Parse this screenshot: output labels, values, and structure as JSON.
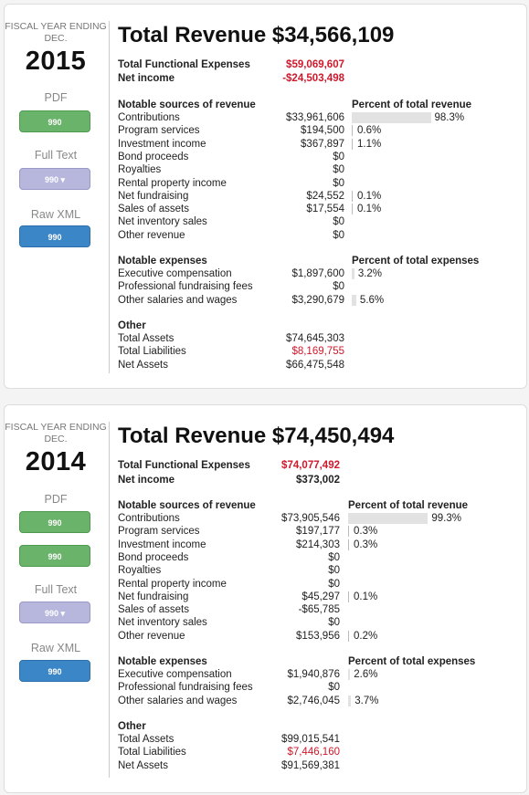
{
  "filings": [
    {
      "fy_label": "FISCAL YEAR ENDING DEC.",
      "year": "2015",
      "pdf_label": "PDF",
      "pdf_buttons": [
        "990"
      ],
      "fulltext_label": "Full Text",
      "fulltext_button": "990 ▾",
      "xml_label": "Raw XML",
      "xml_button": "990",
      "total_revenue": "Total Revenue $34,566,109",
      "functional_expenses_label": "Total Functional Expenses",
      "functional_expenses": "$59,069,607",
      "net_income_label": "Net income",
      "net_income": "-$24,503,498",
      "revenue_header": "Notable sources of revenue",
      "revenue_pct_header": "Percent of total revenue",
      "revenue": [
        {
          "label": "Contributions",
          "value": "$33,961,606",
          "pct": "98.3%",
          "pct_value": 98.3
        },
        {
          "label": "Program services",
          "value": "$194,500",
          "pct": "0.6%",
          "pct_value": 0.6
        },
        {
          "label": "Investment income",
          "value": "$367,897",
          "pct": "1.1%",
          "pct_value": 1.1
        },
        {
          "label": "Bond proceeds",
          "value": "$0",
          "pct": "",
          "pct_value": 0
        },
        {
          "label": "Royalties",
          "value": "$0",
          "pct": "",
          "pct_value": 0
        },
        {
          "label": "Rental property income",
          "value": "$0",
          "pct": "",
          "pct_value": 0
        },
        {
          "label": "Net fundraising",
          "value": "$24,552",
          "pct": "0.1%",
          "pct_value": 0.1
        },
        {
          "label": "Sales of assets",
          "value": "$17,554",
          "pct": "0.1%",
          "pct_value": 0.1
        },
        {
          "label": "Net inventory sales",
          "value": "$0",
          "pct": "",
          "pct_value": 0
        },
        {
          "label": "Other revenue",
          "value": "$0",
          "pct": "",
          "pct_value": 0
        }
      ],
      "expenses_header": "Notable expenses",
      "expenses_pct_header": "Percent of total expenses",
      "expenses": [
        {
          "label": "Executive compensation",
          "value": "$1,897,600",
          "pct": "3.2%",
          "pct_value": 3.2
        },
        {
          "label": "Professional fundraising fees",
          "value": "$0",
          "pct": "",
          "pct_value": 0
        },
        {
          "label": "Other salaries and wages",
          "value": "$3,290,679",
          "pct": "5.6%",
          "pct_value": 5.6
        }
      ],
      "other_header": "Other",
      "other": [
        {
          "label": "Total Assets",
          "value": "$74,645,303",
          "red": false
        },
        {
          "label": "Total Liabilities",
          "value": "$8,169,755",
          "red": true
        },
        {
          "label": "Net Assets",
          "value": "$66,475,548",
          "red": false
        }
      ]
    },
    {
      "fy_label": "FISCAL YEAR ENDING DEC.",
      "year": "2014",
      "pdf_label": "PDF",
      "pdf_buttons": [
        "990",
        "990"
      ],
      "fulltext_label": "Full Text",
      "fulltext_button": "990 ▾",
      "xml_label": "Raw XML",
      "xml_button": "990",
      "total_revenue": "Total Revenue $74,450,494",
      "functional_expenses_label": "Total Functional Expenses",
      "functional_expenses": "$74,077,492",
      "net_income_label": "Net income",
      "net_income": "$373,002",
      "revenue_header": "Notable sources of revenue",
      "revenue_pct_header": "Percent of total revenue",
      "revenue": [
        {
          "label": "Contributions",
          "value": "$73,905,546",
          "pct": "99.3%",
          "pct_value": 99.3
        },
        {
          "label": "Program services",
          "value": "$197,177",
          "pct": "0.3%",
          "pct_value": 0.3
        },
        {
          "label": "Investment income",
          "value": "$214,303",
          "pct": "0.3%",
          "pct_value": 0.3
        },
        {
          "label": "Bond proceeds",
          "value": "$0",
          "pct": "",
          "pct_value": 0
        },
        {
          "label": "Royalties",
          "value": "$0",
          "pct": "",
          "pct_value": 0
        },
        {
          "label": "Rental property income",
          "value": "$0",
          "pct": "",
          "pct_value": 0
        },
        {
          "label": "Net fundraising",
          "value": "$45,297",
          "pct": "0.1%",
          "pct_value": 0.1
        },
        {
          "label": "Sales of assets",
          "value": "-$65,785",
          "pct": "",
          "pct_value": 0
        },
        {
          "label": "Net inventory sales",
          "value": "$0",
          "pct": "",
          "pct_value": 0
        },
        {
          "label": "Other revenue",
          "value": "$153,956",
          "pct": "0.2%",
          "pct_value": 0.2
        }
      ],
      "expenses_header": "Notable expenses",
      "expenses_pct_header": "Percent of total expenses",
      "expenses": [
        {
          "label": "Executive compensation",
          "value": "$1,940,876",
          "pct": "2.6%",
          "pct_value": 2.6
        },
        {
          "label": "Professional fundraising fees",
          "value": "$0",
          "pct": "",
          "pct_value": 0
        },
        {
          "label": "Other salaries and wages",
          "value": "$2,746,045",
          "pct": "3.7%",
          "pct_value": 3.7
        }
      ],
      "other_header": "Other",
      "other": [
        {
          "label": "Total Assets",
          "value": "$99,015,541",
          "red": false
        },
        {
          "label": "Total Liabilities",
          "value": "$7,446,160",
          "red": true
        },
        {
          "label": "Net Assets",
          "value": "$91,569,381",
          "red": false
        }
      ]
    }
  ],
  "colors": {
    "negative": "#d0182b",
    "pdf_button": "#6ab36a",
    "fulltext_button": "#b7b6dd",
    "xml_button": "#3b86c6",
    "bar": "#e2e2e2"
  }
}
